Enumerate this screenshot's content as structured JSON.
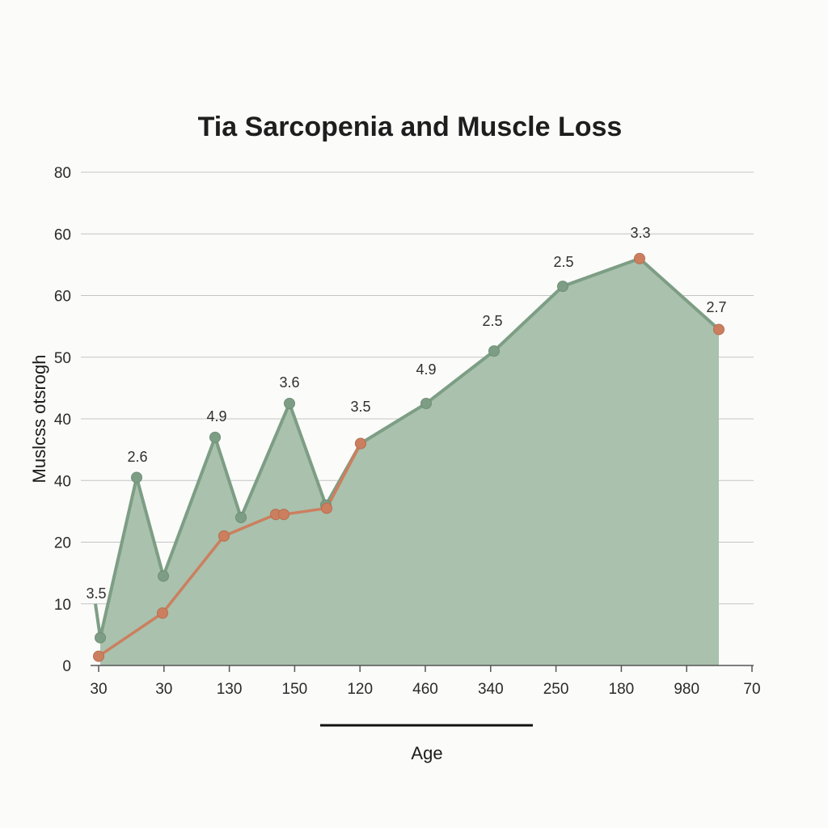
{
  "chart_data": {
    "type": "area",
    "title": "Tia Sarcopenia and Muscle Loss",
    "xlabel": "Age",
    "ylabel": "Muslcss otsrogh",
    "y_ticks": [
      "0",
      "10",
      "20",
      "40",
      "40",
      "50",
      "60",
      "60",
      "80"
    ],
    "x_ticks": [
      "30",
      "30",
      "130",
      "150",
      "120",
      "460",
      "340",
      "250",
      "180",
      "980",
      "70"
    ],
    "ylim": [
      0,
      80
    ],
    "grid": true,
    "colors": {
      "area_fill": "#a9c1ad",
      "green": "#7d9e84",
      "orange": "#cc7f5e"
    },
    "series": [
      {
        "values": [
          4.5,
          30.5,
          14.5,
          37,
          24,
          42.5,
          26,
          36,
          42.5,
          51,
          61.5,
          66,
          54.5
        ]
      },
      {
        "values": [
          1.5,
          8.5,
          21,
          24.5,
          24.5,
          25.5,
          36,
          66,
          54.5
        ]
      }
    ],
    "data_labels": [
      "3.5",
      "2.6",
      "4.9",
      "3.6",
      "3.5",
      "4.9",
      "2.5",
      "2.5",
      "3.3",
      "2.7"
    ]
  }
}
